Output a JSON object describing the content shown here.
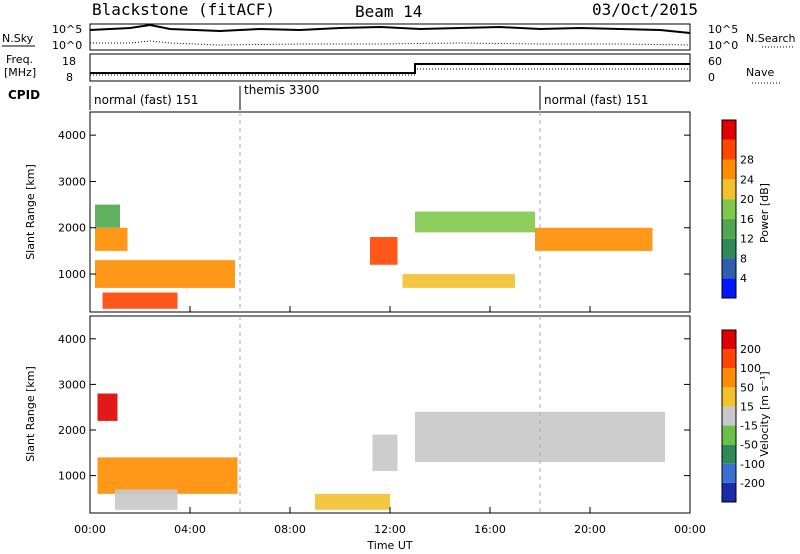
{
  "header": {
    "radar": "Blackstone (fitACF)",
    "beam": "Beam 14",
    "date": "03/Oct/2015"
  },
  "top_panel": {
    "left_label": "N.Sky",
    "right_label": "N.Search",
    "left_ticks": [
      "10^5",
      "10^0"
    ],
    "right_ticks": [
      "10^5",
      "10^0"
    ]
  },
  "freq_panel": {
    "left_label": "Freq.",
    "left_unit": "[MHz]",
    "right_label": "Nave",
    "left_ticks": [
      "18",
      "8"
    ],
    "right_ticks": [
      "60",
      "0"
    ]
  },
  "cpid": {
    "label": "CPID",
    "segments": [
      {
        "name": "normal (fast) 151",
        "start_h": 0
      },
      {
        "name": "themis 3300",
        "start_h": 6
      },
      {
        "name": "normal (fast) 151",
        "start_h": 18
      }
    ]
  },
  "chart_data": [
    {
      "type": "heatmap",
      "title": "",
      "xlabel": "Time UT",
      "ylabel": "Slant Range [km]",
      "x_ticks": [
        "00:00",
        "04:00",
        "08:00",
        "12:00",
        "16:00",
        "20:00",
        "00:00"
      ],
      "xlim_hours": [
        0,
        24
      ],
      "ylim": [
        180,
        4500
      ],
      "y_ticks": [
        1000,
        2000,
        3000,
        4000
      ],
      "colorbar": {
        "label": "Power [dB]",
        "ticks": [
          "4",
          "8",
          "12",
          "16",
          "20",
          "24",
          "28"
        ],
        "colors": [
          "#0018ff",
          "#2f5fb0",
          "#2e8b57",
          "#4fa84f",
          "#7fc84a",
          "#f2c12e",
          "#ff8c00",
          "#ff4500",
          "#e00000"
        ]
      },
      "regions": [
        {
          "t0": 0.2,
          "t1": 1.5,
          "r0": 1500,
          "r1": 2000,
          "level": 6
        },
        {
          "t0": 0.2,
          "t1": 1.2,
          "r0": 2000,
          "r1": 2500,
          "level": 3
        },
        {
          "t0": 0.2,
          "t1": 5.8,
          "r0": 700,
          "r1": 1300,
          "level": 6
        },
        {
          "t0": 0.5,
          "t1": 3.5,
          "r0": 250,
          "r1": 600,
          "level": 7
        },
        {
          "t0": 11.2,
          "t1": 12.3,
          "r0": 1200,
          "r1": 1800,
          "level": 7
        },
        {
          "t0": 13.0,
          "t1": 17.8,
          "r0": 1900,
          "r1": 2350,
          "level": 4
        },
        {
          "t0": 17.8,
          "t1": 22.5,
          "r0": 1500,
          "r1": 2000,
          "level": 6
        },
        {
          "t0": 12.5,
          "t1": 17.0,
          "r0": 700,
          "r1": 1000,
          "level": 5
        }
      ]
    },
    {
      "type": "heatmap",
      "title": "",
      "xlabel": "Time UT",
      "ylabel": "Slant Range [km]",
      "x_ticks": [
        "00:00",
        "04:00",
        "08:00",
        "12:00",
        "16:00",
        "20:00",
        "00:00"
      ],
      "xlim_hours": [
        0,
        24
      ],
      "ylim": [
        180,
        4500
      ],
      "y_ticks": [
        1000,
        2000,
        3000,
        4000
      ],
      "colorbar": {
        "label": "Velocity [m s⁻¹]",
        "ticks": [
          "200",
          "100",
          "50",
          "15",
          "-15",
          "-50",
          "-100",
          "-200"
        ],
        "colors": [
          "#1a2aa8",
          "#3a6fd0",
          "#2e8b57",
          "#6cc04a",
          "#c8c8c8",
          "#f2c12e",
          "#ff8c00",
          "#ff4500",
          "#e00000"
        ]
      },
      "regions": [
        {
          "t0": 0.3,
          "t1": 1.1,
          "r0": 2200,
          "r1": 2800,
          "level": 8
        },
        {
          "t0": 0.3,
          "t1": 5.9,
          "r0": 600,
          "r1": 1400,
          "level": 6
        },
        {
          "t0": 1.0,
          "t1": 3.5,
          "r0": 250,
          "r1": 700,
          "level": 4
        },
        {
          "t0": 11.3,
          "t1": 12.3,
          "r0": 1100,
          "r1": 1900,
          "level": 4
        },
        {
          "t0": 13.0,
          "t1": 23.0,
          "r0": 1300,
          "r1": 2400,
          "level": 4
        },
        {
          "t0": 9.0,
          "t1": 12.0,
          "r0": 250,
          "r1": 600,
          "level": 5
        }
      ]
    }
  ]
}
